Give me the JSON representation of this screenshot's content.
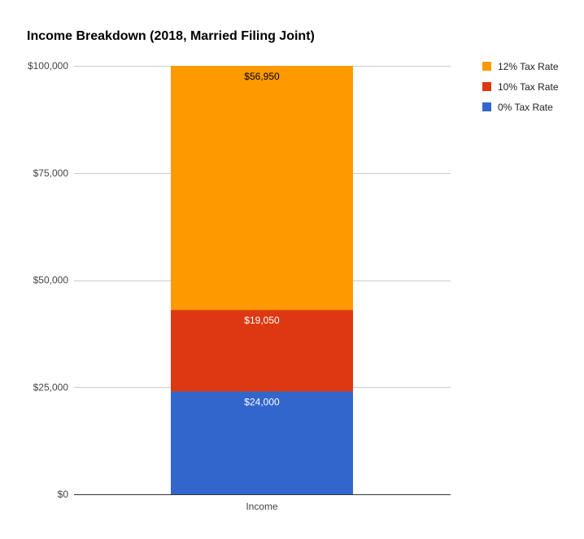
{
  "chart_data": {
    "type": "bar",
    "stacked": true,
    "title": "Income Breakdown (2018, Married Filing Joint)",
    "xlabel": "",
    "ylabel": "",
    "categories": [
      "Income"
    ],
    "ylim": [
      0,
      100000
    ],
    "yticks": [
      0,
      25000,
      50000,
      75000,
      100000
    ],
    "ytick_labels": [
      "$0",
      "$25,000",
      "$50,000",
      "$75,000",
      "$100,000"
    ],
    "grid": true,
    "legend_position": "top-right",
    "series": [
      {
        "name": "0% Tax Rate",
        "values": [
          24000
        ],
        "color": "#3366cc",
        "value_labels": [
          "$24,000"
        ],
        "label_color": "#ffffff"
      },
      {
        "name": "10% Tax Rate",
        "values": [
          19050
        ],
        "color": "#dc3912",
        "value_labels": [
          "$19,050"
        ],
        "label_color": "#ffffff"
      },
      {
        "name": "12% Tax Rate",
        "values": [
          56950
        ],
        "color": "#ff9900",
        "value_labels": [
          "$56,950"
        ],
        "label_color": "#000000"
      }
    ],
    "legend_order": [
      "12% Tax Rate",
      "10% Tax Rate",
      "0% Tax Rate"
    ]
  }
}
